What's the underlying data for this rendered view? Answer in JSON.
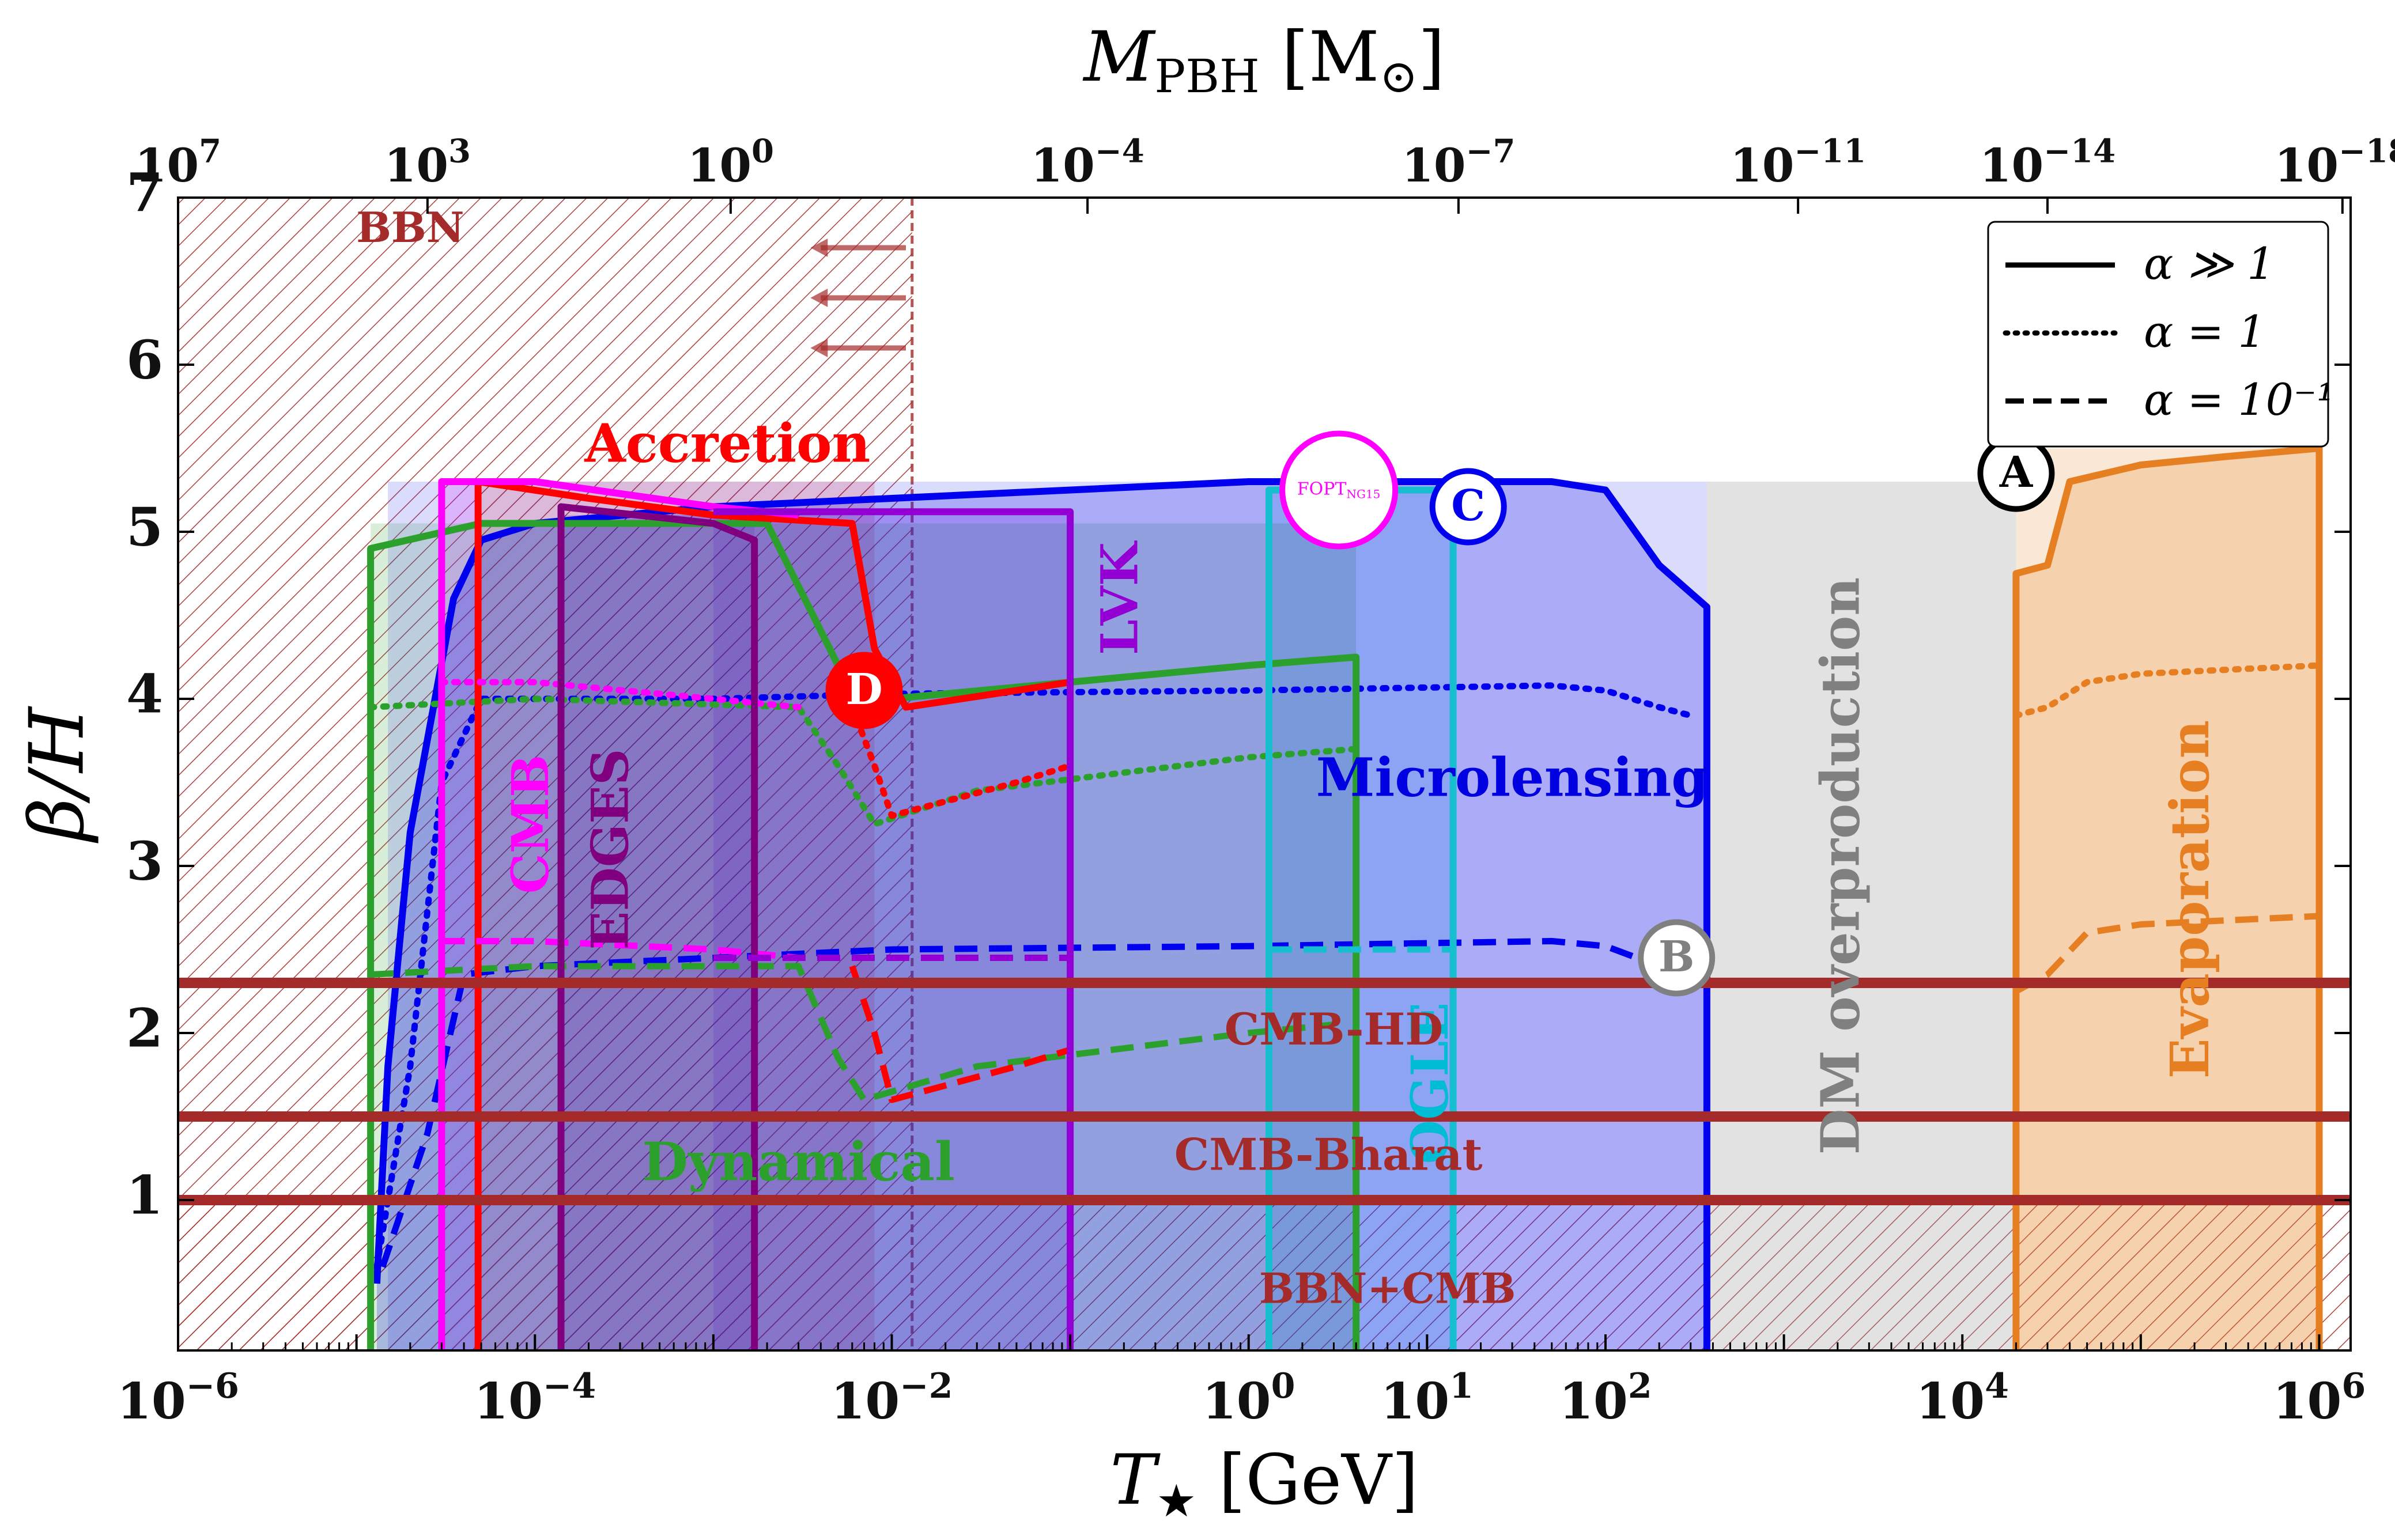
{
  "chart_data": {
    "type": "area",
    "x_scale": "log",
    "xlim": [
      1e-06,
      1500000.0
    ],
    "ylim": [
      0.1,
      7
    ],
    "xlabel_top": {
      "main": "M",
      "sub": "PBH",
      "unit_open": " [M",
      "unit_sub": "⊙",
      "unit_close": "]"
    },
    "ylabel": "β/H",
    "xlabel_bottom": {
      "main": "T",
      "star": "★",
      "unit": " [GeV]"
    },
    "y_ticks": [
      {
        "v": 1,
        "label": "1"
      },
      {
        "v": 2,
        "label": "2"
      },
      {
        "v": 3,
        "label": "3"
      },
      {
        "v": 4,
        "label": "4"
      },
      {
        "v": 5,
        "label": "5"
      },
      {
        "v": 6,
        "label": "6"
      },
      {
        "v": 7,
        "label": "7"
      }
    ],
    "x_ticks_bottom": [
      {
        "v": 1e-06,
        "base": "10",
        "exp": "−6"
      },
      {
        "v": 0.0001,
        "base": "10",
        "exp": "−4"
      },
      {
        "v": 0.01,
        "base": "10",
        "exp": "−2"
      },
      {
        "v": 1,
        "base": "10",
        "exp": "0"
      },
      {
        "v": 10,
        "base": "10",
        "exp": "1"
      },
      {
        "v": 100,
        "base": "10",
        "exp": "2"
      },
      {
        "v": 10000.0,
        "base": "10",
        "exp": "4"
      },
      {
        "v": 1000000.0,
        "base": "10",
        "exp": "6"
      }
    ],
    "x_ticks_top": [
      {
        "t": 1e-06,
        "base": "10",
        "exp": "7"
      },
      {
        "t": 2.5e-05,
        "base": "10",
        "exp": "3"
      },
      {
        "t": 0.00125,
        "base": "10",
        "exp": "0"
      },
      {
        "t": 0.125,
        "base": "10",
        "exp": "−4"
      },
      {
        "t": 15.0,
        "base": "10",
        "exp": "−7"
      },
      {
        "t": 1200.0,
        "base": "10",
        "exp": "−11"
      },
      {
        "t": 30000.0,
        "base": "10",
        "exp": "−14"
      },
      {
        "t": 1350000.0,
        "base": "10",
        "exp": "−18"
      }
    ],
    "horizontal_lines": [
      {
        "y": 2.3,
        "label": "CMB-HD",
        "label_x": 3,
        "label_y": 2.0,
        "color": "#a52a2a"
      },
      {
        "y": 1.5,
        "label": "CMB-Bharat",
        "label_x": 2.8,
        "label_y": 1.25,
        "color": "#a52a2a"
      },
      {
        "y": 1.0,
        "label": "",
        "color": "#a52a2a"
      }
    ],
    "regions": [
      {
        "name": "BBN",
        "xr": [
          1e-06,
          0.013
        ],
        "yr": [
          0.1,
          7
        ],
        "color": "#a52a2a",
        "style": "hatch-dashed-edge",
        "label": "BBN",
        "label_x": 2e-05,
        "label_y": 6.8,
        "label_color": "#a52a2a",
        "label_size": 72,
        "label_rot": 0
      },
      {
        "name": "BBN+CMB",
        "xr": [
          1e-06,
          1500000.0
        ],
        "yr": [
          0.1,
          1.0
        ],
        "color": "#a52a2a",
        "style": "hatch",
        "label": "BBN+CMB",
        "label_x": 6,
        "label_y": 0.45,
        "label_color": "#a52a2a",
        "label_size": 72,
        "label_rot": 0
      },
      {
        "name": "Accretion",
        "xr": [
          5e-05,
          0.008
        ],
        "yr": [
          0.1,
          5.3
        ],
        "color": "#ff0000",
        "style": "fill-hatch",
        "label": "Accretion",
        "label_x": 0.0012,
        "label_y": 5.5,
        "label_color": "#ff0000",
        "label_size": 92,
        "label_rot": 0
      },
      {
        "name": "CMB",
        "xr": [
          3e-05,
          4.8e-05
        ],
        "yr": [
          0.1,
          5.3
        ],
        "color": "#ff00ff",
        "style": "fill",
        "label": "CMB",
        "label_x": 0.0001,
        "label_y": 3.25,
        "label_color": "#ff00ff",
        "label_size": 88,
        "label_rot": -90
      },
      {
        "name": "EDGES",
        "xr": [
          0.00014,
          0.0017
        ],
        "yr": [
          0.1,
          5.1
        ],
        "color": "#800080",
        "style": "fill-hatch",
        "label": "EDGES",
        "label_x": 0.00028,
        "label_y": 3.1,
        "label_color": "#800080",
        "label_size": 88,
        "label_rot": -90
      },
      {
        "name": "LVK",
        "xr": [
          0.001,
          0.1
        ],
        "yr": [
          0.1,
          5.1
        ],
        "color": "#9400d3",
        "style": "fill",
        "label": "LVK",
        "label_x": 0.2,
        "label_y": 4.6,
        "label_color": "#9400d3",
        "label_size": 88,
        "label_rot": -90
      },
      {
        "name": "OGLE",
        "xr": [
          1.3,
          14
        ],
        "yr": [
          0.1,
          5.25
        ],
        "color": "#00bcd4",
        "style": "fill",
        "label": "OGLE",
        "label_x": 11,
        "label_y": 1.7,
        "label_color": "#00bcd4",
        "label_size": 88,
        "label_rot": -90
      },
      {
        "name": "DM overproduction",
        "xr": [
          370,
          20000.0
        ],
        "yr": [
          0.1,
          5.3
        ],
        "color": "#9e9e9e",
        "style": "fill",
        "label": "DM overproduction",
        "label_x": 2200,
        "label_y": 3.0,
        "label_color": "#808080",
        "label_size": 92,
        "label_rot": -90
      },
      {
        "name": "Evaporation",
        "xr": [
          20000.0,
          1000000.0
        ],
        "yr": [
          0.1,
          5.5
        ],
        "color": "#e67e22",
        "style": "fill",
        "label": "Evaporation",
        "label_x": 200000.0,
        "label_y": 2.8,
        "label_color": "#e67e22",
        "label_size": 92,
        "label_rot": -90
      },
      {
        "name": "Dynamical",
        "xr": [
          1.2e-05,
          4
        ],
        "yr": [
          0.1,
          5.05
        ],
        "color": "#2ca02c",
        "style": "fill",
        "label": "Dynamical",
        "label_x": 0.003,
        "label_y": 1.2,
        "label_color": "#2ca02c",
        "label_size": 92,
        "label_rot": 0
      },
      {
        "name": "Microlensing",
        "xr": [
          1.5e-05,
          370
        ],
        "yr": [
          0.1,
          5.3
        ],
        "color": "#3a3af0",
        "style": "fill",
        "label": "Microlensing",
        "label_x": 30,
        "label_y": 3.5,
        "label_color": "#0000e0",
        "label_size": 92,
        "label_rot": 0
      }
    ],
    "series": [
      {
        "name": "Microlensing",
        "color": "#0000ee",
        "style": "solid",
        "fill": true,
        "points": [
          [
            1.3e-05,
            0.5
          ],
          [
            1.5e-05,
            1.8
          ],
          [
            2e-05,
            3.2
          ],
          [
            3.5e-05,
            4.6
          ],
          [
            5e-05,
            4.95
          ],
          [
            0.0001,
            5.05
          ],
          [
            0.001,
            5.15
          ],
          [
            0.01,
            5.2
          ],
          [
            1,
            5.3
          ],
          [
            50,
            5.3
          ],
          [
            100,
            5.25
          ],
          [
            200,
            4.8
          ],
          [
            370,
            4.55
          ],
          [
            370,
            0.1
          ]
        ]
      },
      {
        "name": "Microlensing",
        "color": "#0000ee",
        "style": "dotted",
        "fill": false,
        "points": [
          [
            1.3e-05,
            0.6
          ],
          [
            2e-05,
            1.8
          ],
          [
            3e-05,
            3.5
          ],
          [
            5e-05,
            4.0
          ],
          [
            0.001,
            4.0
          ],
          [
            0.01,
            4.03
          ],
          [
            1,
            4.05
          ],
          [
            50,
            4.08
          ],
          [
            100,
            4.05
          ],
          [
            200,
            3.95
          ],
          [
            300,
            3.9
          ]
        ]
      },
      {
        "name": "Microlensing",
        "color": "#0000ee",
        "style": "dashed",
        "fill": false,
        "points": [
          [
            1.4e-05,
            0.6
          ],
          [
            2.5e-05,
            1.4
          ],
          [
            4e-05,
            2.35
          ],
          [
            0.0001,
            2.4
          ],
          [
            0.001,
            2.45
          ],
          [
            0.01,
            2.5
          ],
          [
            1,
            2.52
          ],
          [
            50,
            2.55
          ],
          [
            100,
            2.52
          ],
          [
            200,
            2.4
          ],
          [
            300,
            2.3
          ]
        ]
      },
      {
        "name": "Dynamical",
        "color": "#2ca02c",
        "style": "solid",
        "fill": false,
        "points": [
          [
            1.2e-05,
            0.1
          ],
          [
            1.2e-05,
            4.9
          ],
          [
            5e-05,
            5.05
          ],
          [
            0.002,
            5.05
          ],
          [
            0.005,
            4.2
          ],
          [
            0.01,
            4.0
          ],
          [
            0.1,
            4.1
          ],
          [
            1,
            4.2
          ],
          [
            4,
            4.25
          ],
          [
            4,
            0.1
          ]
        ]
      },
      {
        "name": "Dynamical",
        "color": "#2ca02c",
        "style": "dotted",
        "fill": false,
        "points": [
          [
            1.2e-05,
            3.95
          ],
          [
            0.0001,
            4.0
          ],
          [
            0.003,
            3.95
          ],
          [
            0.005,
            3.6
          ],
          [
            0.008,
            3.25
          ],
          [
            0.03,
            3.45
          ],
          [
            1,
            3.65
          ],
          [
            4,
            3.7
          ]
        ]
      },
      {
        "name": "Dynamical",
        "color": "#2ca02c",
        "style": "dashed",
        "fill": false,
        "points": [
          [
            1.2e-05,
            2.35
          ],
          [
            0.0001,
            2.4
          ],
          [
            0.003,
            2.4
          ],
          [
            0.005,
            1.85
          ],
          [
            0.007,
            1.6
          ],
          [
            0.03,
            1.8
          ],
          [
            1,
            2.0
          ],
          [
            3,
            2.05
          ]
        ]
      },
      {
        "name": "Accretion",
        "color": "#ff0000",
        "style": "solid",
        "fill": false,
        "points": [
          [
            4.8e-05,
            0.1
          ],
          [
            4.8e-05,
            5.3
          ],
          [
            0.0002,
            5.2
          ],
          [
            0.001,
            5.1
          ],
          [
            0.006,
            5.05
          ],
          [
            0.008,
            4.3
          ],
          [
            0.012,
            3.95
          ],
          [
            0.05,
            4.05
          ],
          [
            0.1,
            4.1
          ]
        ]
      },
      {
        "name": "Accretion",
        "color": "#ff0000",
        "style": "dotted",
        "fill": false,
        "points": [
          [
            0.006,
            3.95
          ],
          [
            0.008,
            3.6
          ],
          [
            0.01,
            3.3
          ],
          [
            0.05,
            3.5
          ],
          [
            0.1,
            3.6
          ]
        ]
      },
      {
        "name": "Accretion",
        "color": "#ff0000",
        "style": "dashed",
        "fill": false,
        "points": [
          [
            0.006,
            2.4
          ],
          [
            0.008,
            2.0
          ],
          [
            0.01,
            1.6
          ],
          [
            0.05,
            1.8
          ],
          [
            0.1,
            1.9
          ]
        ]
      },
      {
        "name": "CMB",
        "color": "#ff00ff",
        "style": "solid",
        "fill": false,
        "points": [
          [
            3e-05,
            0.1
          ],
          [
            3e-05,
            5.3
          ],
          [
            0.0001,
            5.3
          ],
          [
            0.001,
            5.15
          ],
          [
            0.003,
            5.1
          ]
        ]
      },
      {
        "name": "CMB",
        "color": "#ff00ff",
        "style": "dotted",
        "fill": false,
        "points": [
          [
            3e-05,
            4.1
          ],
          [
            0.0001,
            4.1
          ],
          [
            0.001,
            4.0
          ],
          [
            0.003,
            3.95
          ]
        ]
      },
      {
        "name": "CMB",
        "color": "#ff00ff",
        "style": "dashed",
        "fill": false,
        "points": [
          [
            3e-05,
            2.55
          ],
          [
            0.0001,
            2.55
          ],
          [
            0.001,
            2.5
          ],
          [
            0.003,
            2.45
          ]
        ]
      },
      {
        "name": "EDGES",
        "color": "#800080",
        "style": "solid",
        "fill": false,
        "points": [
          [
            0.00014,
            0.1
          ],
          [
            0.00014,
            5.15
          ],
          [
            0.001,
            5.05
          ],
          [
            0.0017,
            4.95
          ],
          [
            0.0017,
            0.1
          ]
        ]
      },
      {
        "name": "LVK",
        "color": "#9400d3",
        "style": "solid",
        "fill": false,
        "points": [
          [
            0.001,
            5.12
          ],
          [
            0.1,
            5.12
          ],
          [
            0.1,
            0.1
          ]
        ]
      },
      {
        "name": "LVK",
        "color": "#9400d3",
        "style": "dashed",
        "fill": false,
        "points": [
          [
            0.001,
            2.45
          ],
          [
            0.1,
            2.45
          ]
        ]
      },
      {
        "name": "OGLE",
        "color": "#17becf",
        "style": "solid",
        "fill": false,
        "points": [
          [
            1.3,
            0.1
          ],
          [
            1.3,
            5.25
          ],
          [
            14,
            5.25
          ],
          [
            14,
            0.1
          ]
        ]
      },
      {
        "name": "OGLE",
        "color": "#17becf",
        "style": "dashed",
        "fill": false,
        "points": [
          [
            1.3,
            2.5
          ],
          [
            14,
            2.5
          ]
        ]
      },
      {
        "name": "Evaporation",
        "color": "#e67e22",
        "style": "solid",
        "fill": true,
        "points": [
          [
            20000.0,
            0.1
          ],
          [
            20000.0,
            4.75
          ],
          [
            30000.0,
            4.8
          ],
          [
            40000.0,
            5.3
          ],
          [
            100000.0,
            5.4
          ],
          [
            300000.0,
            5.45
          ],
          [
            1000000.0,
            5.5
          ],
          [
            1000000.0,
            0.1
          ]
        ]
      },
      {
        "name": "Evaporation",
        "color": "#e67e22",
        "style": "dotted",
        "fill": false,
        "points": [
          [
            20000.0,
            3.9
          ],
          [
            30000.0,
            3.95
          ],
          [
            50000.0,
            4.1
          ],
          [
            100000.0,
            4.15
          ],
          [
            1000000.0,
            4.2
          ]
        ]
      },
      {
        "name": "Evaporation",
        "color": "#e67e22",
        "style": "dashed",
        "fill": false,
        "points": [
          [
            20000.0,
            2.25
          ],
          [
            30000.0,
            2.35
          ],
          [
            50000.0,
            2.6
          ],
          [
            100000.0,
            2.65
          ],
          [
            1000000.0,
            2.7
          ]
        ]
      }
    ],
    "markers": [
      {
        "label": "A",
        "x": 20000.0,
        "y": 5.35,
        "edge": "#000000",
        "text": "#000000",
        "fill": "#ffffff"
      },
      {
        "label": "B",
        "x": 250,
        "y": 2.45,
        "edge": "#808080",
        "text": "#808080",
        "fill": "#ffffff"
      },
      {
        "label": "C",
        "x": 17,
        "y": 5.15,
        "edge": "#0000ee",
        "text": "#0000ee",
        "fill": "#ffffff"
      },
      {
        "label": "D",
        "x": 0.007,
        "y": 4.05,
        "edge": "#ff0000",
        "text": "#ffffff",
        "fill": "#ff0000"
      }
    ],
    "fopt_marker": {
      "main": "FOPT",
      "sub": "NG15",
      "x": 3.2,
      "y": 5.25,
      "color": "#ff00ff"
    },
    "legend": {
      "position": "top-right",
      "entries": [
        {
          "style": "solid",
          "text": "α ≫ 1"
        },
        {
          "style": "dotted",
          "text": "α = 1"
        },
        {
          "style": "dashed",
          "text": "α = 10⁻¹"
        }
      ]
    }
  }
}
